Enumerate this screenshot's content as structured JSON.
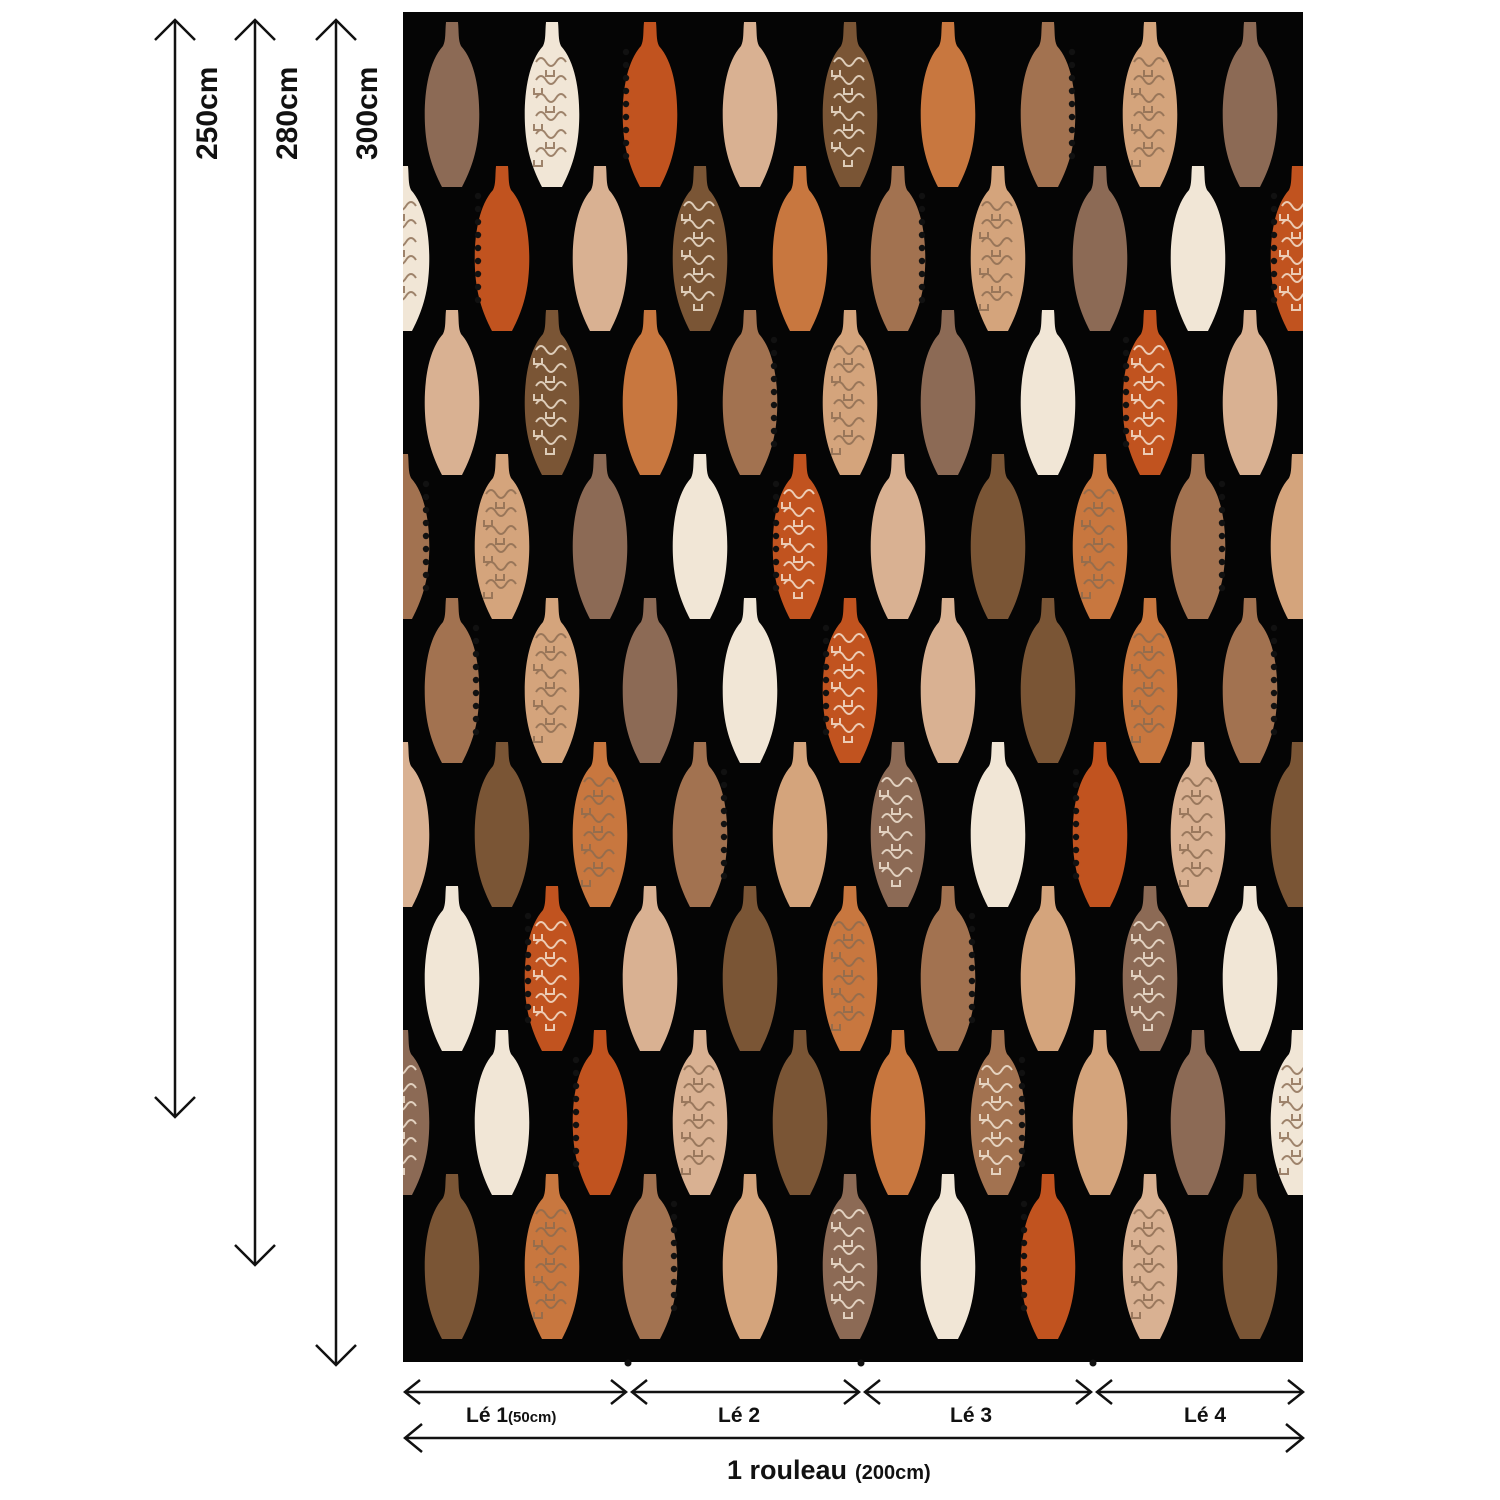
{
  "heights": [
    {
      "label": "250cm",
      "value_cm": 250
    },
    {
      "label": "280cm",
      "value_cm": 280
    },
    {
      "label": "300cm",
      "value_cm": 300
    }
  ],
  "strips": [
    {
      "label": "Lé 1",
      "sub": "(50cm)"
    },
    {
      "label": "Lé 2",
      "sub": ""
    },
    {
      "label": "Lé 3",
      "sub": ""
    },
    {
      "label": "Lé 4",
      "sub": ""
    }
  ],
  "roll": {
    "label": "1 rouleau",
    "sub": "(200cm)"
  },
  "pattern": {
    "background": "#050505",
    "vase_colors": [
      "#8c6a55",
      "#f1e6d6",
      "#c1531f",
      "#d9b192",
      "#7a5535",
      "#c8773f",
      "#a27250",
      "#d4a47c"
    ],
    "line_color": "#f6ead9",
    "dot_color": "#111111"
  }
}
